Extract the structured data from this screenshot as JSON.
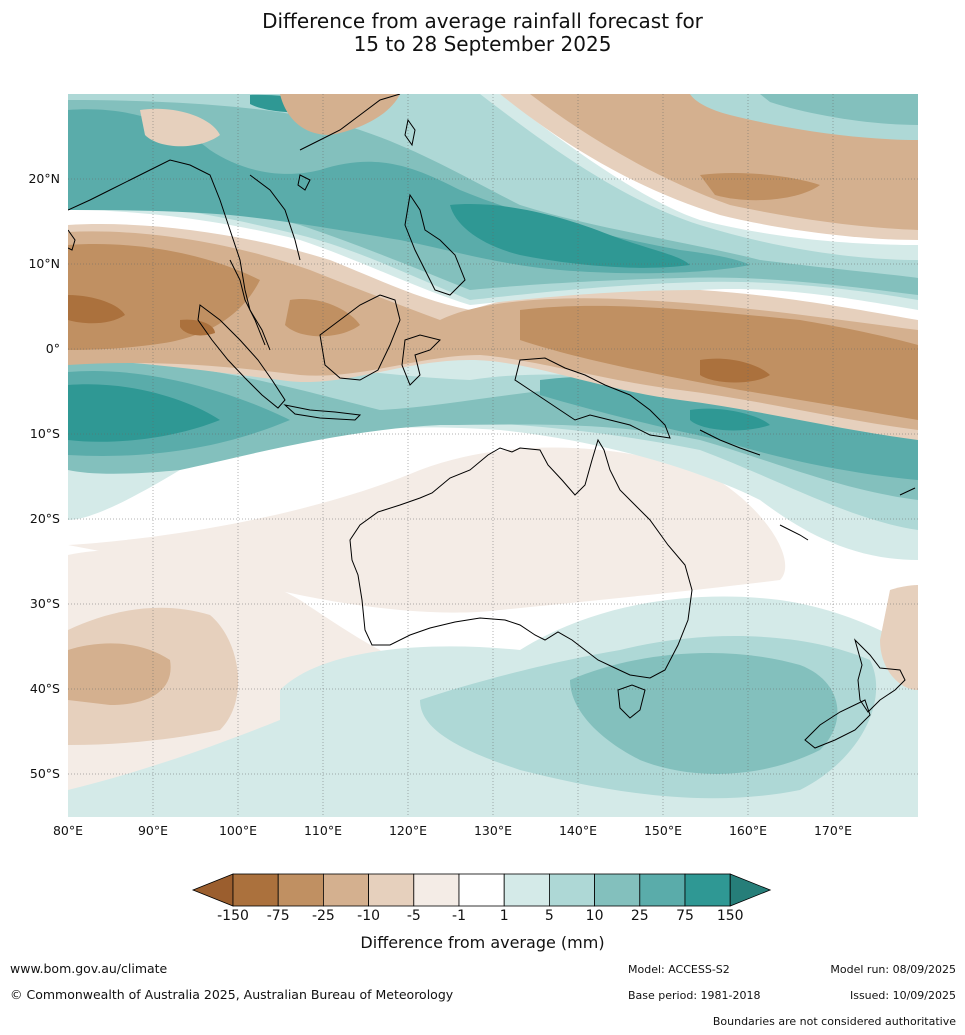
{
  "title": {
    "line1": "Difference from average rainfall forecast for",
    "line2": "15 to 28 September 2025"
  },
  "axes": {
    "longitude_labels": [
      "80°E",
      "90°E",
      "100°E",
      "110°E",
      "120°E",
      "130°E",
      "140°E",
      "150°E",
      "160°E",
      "170°E"
    ],
    "latitude_labels": [
      "20°N",
      "10°N",
      "0°",
      "10°S",
      "20°S",
      "30°S",
      "40°S",
      "50°S"
    ]
  },
  "colorbar": {
    "tick_labels": [
      "-150",
      "-75",
      "-25",
      "-10",
      "-5",
      "-1",
      "1",
      "5",
      "10",
      "25",
      "75",
      "150"
    ],
    "colors": [
      "#9b5e2e",
      "#ab713d",
      "#c09062",
      "#d4b08f",
      "#e6d0bd",
      "#f4ece6",
      "#ffffff",
      "#d4eae8",
      "#aed8d6",
      "#83c0bd",
      "#5aacaa",
      "#2f9894",
      "#267e79"
    ],
    "label": "Difference from average (mm)"
  },
  "footer": {
    "website": "www.bom.gov.au/climate",
    "copyright": "© Commonwealth of Australia 2025, Australian Bureau of Meteorology",
    "model": "Model: ACCESS-S2",
    "base_period": "Base period: 1981-2018",
    "model_run": "Model run: 08/09/2025",
    "issued": "Issued: 10/09/2025",
    "disclaimer": "Boundaries are not considered authoritative"
  }
}
